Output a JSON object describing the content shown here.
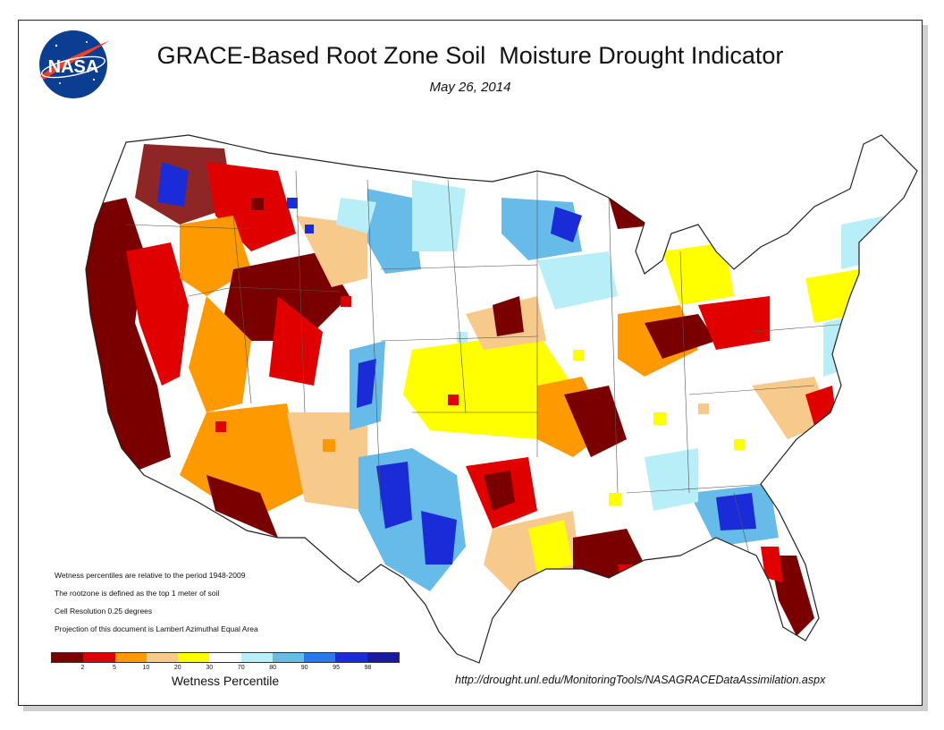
{
  "title": "GRACE-Based Root Zone Soil  Moisture Drought Indicator",
  "subtitle": "May 26, 2014",
  "logo_text": "NASA",
  "notes": [
    "Wetness percentiles are relative to the period 1948-2009",
    "The rootzone is defined as the top 1 meter of soil",
    "Cell Resolution 0.25 degrees",
    "Projection of this document is Lambert Azimuthal Equal Area"
  ],
  "legend": {
    "label": "Wetness Percentile",
    "ticks": [
      "2",
      "5",
      "10",
      "20",
      "30",
      "70",
      "80",
      "90",
      "95",
      "98"
    ],
    "colors": [
      "#7a0000",
      "#e00000",
      "#ff9900",
      "#f7c98a",
      "#ffff00",
      "#ffffff",
      "#b8eef7",
      "#66bbe8",
      "#2b79e8",
      "#1a2bd8",
      "#1a1aa0"
    ]
  },
  "url": "http://drought.unl.edu/MonitoringTools/NASAGRACEDataAssimilation.aspx",
  "colors": {
    "very_dry": "#7a0000",
    "dry": "#e00000",
    "moderately_dry": "#ff9900",
    "slightly_dry": "#f7c98a",
    "abnormally_dry": "#ffff00",
    "normal": "#ffffff",
    "slightly_wet": "#b8eef7",
    "wet": "#66bbe8",
    "very_wet": "#1a2bd8"
  }
}
